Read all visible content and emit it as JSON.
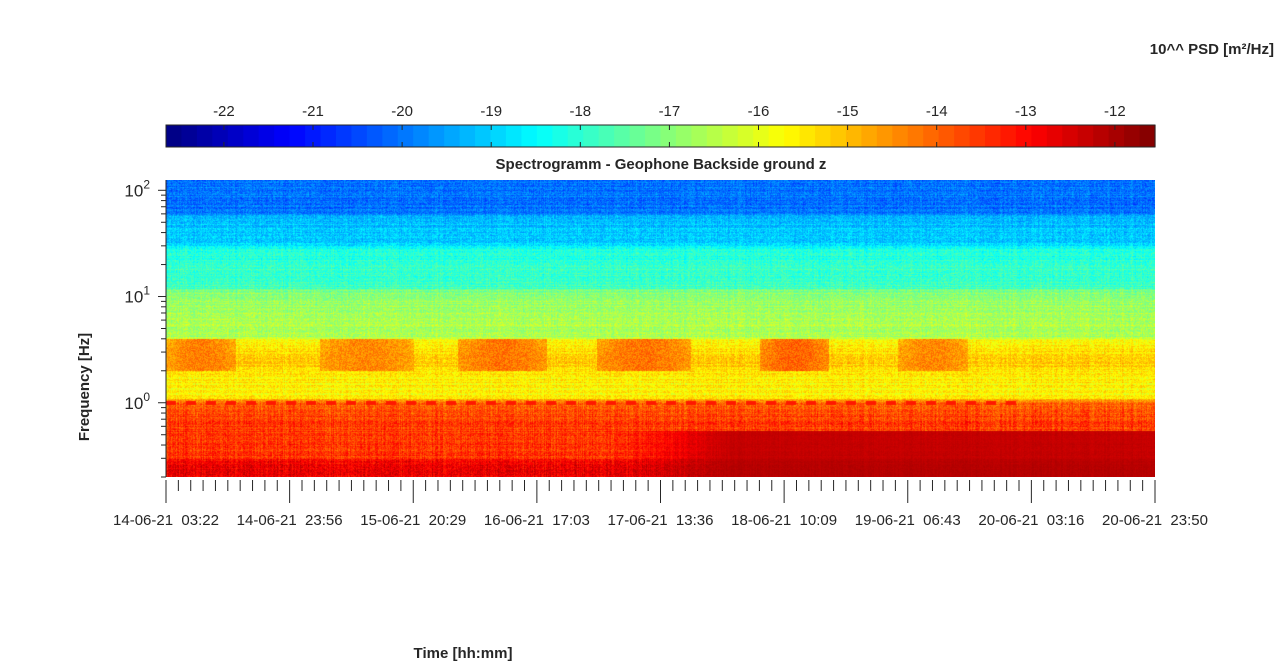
{
  "chart_data": {
    "type": "heatmap",
    "title": "Spectrogramm - Geophone Backside ground z",
    "xlabel": "Time [hh:mm]",
    "ylabel": "Frequency [Hz]",
    "colorbar": {
      "label": "10^^ PSD [m²/Hz]",
      "ticks": [
        "-22",
        "-21",
        "-20",
        "-19",
        "-18",
        "-17",
        "-16",
        "-15",
        "-14",
        "-13",
        "-12"
      ],
      "tick_values": [
        -22,
        -21,
        -20,
        -19,
        -18,
        -17,
        -16,
        -15,
        -14,
        -13,
        -12
      ],
      "range": [
        -22.65,
        -11.55
      ],
      "colormap": "jet",
      "placement": "top"
    },
    "y_scale": "log",
    "ylim": [
      0.2,
      125
    ],
    "y_ticks": [
      {
        "value": 1,
        "base": "10",
        "exp": "0"
      },
      {
        "value": 10,
        "base": "10",
        "exp": "1"
      },
      {
        "value": 100,
        "base": "10",
        "exp": "2"
      }
    ],
    "x_tick_labels": [
      "14-06-21  03:22",
      "14-06-21  23:56",
      "15-06-21  20:29",
      "16-06-21  17:03",
      "17-06-21  13:36",
      "18-06-21  10:09",
      "19-06-21  06:43",
      "20-06-21  03:16",
      "20-06-21  23:50"
    ],
    "x_label_texts": [
      "14-06-21  03:22",
      "14-06-21  23:56",
      "15-06-21  20:29",
      "16-06-21  17:03",
      "17-06-21  13:36",
      "18-06-21  10:09",
      "19-06-21  06:43",
      "20-06-21  03:16",
      "20-06-21  23:50"
    ],
    "x_minor_per_major": 9,
    "bands": [
      {
        "f_low": 0.2,
        "f_high": 0.3,
        "level": -12.7
      },
      {
        "f_low": 0.3,
        "f_high": 0.9,
        "level": -13.5
      },
      {
        "f_low": 0.9,
        "f_high": 1.1,
        "level": -14.0
      },
      {
        "f_low": 1.1,
        "f_high": 2.2,
        "level": -15.6
      },
      {
        "f_low": 2.2,
        "f_high": 4.0,
        "level": -15.2
      },
      {
        "f_low": 4.0,
        "f_high": 12,
        "level": -16.6
      },
      {
        "f_low": 12,
        "f_high": 30,
        "level": -17.8
      },
      {
        "f_low": 30,
        "f_high": 60,
        "level": -19.0
      },
      {
        "f_low": 60,
        "f_high": 125,
        "level": -20.0
      }
    ],
    "activity_bursts": [
      {
        "x_start": 0.0,
        "x_end": 0.07,
        "f_low": 2,
        "f_high": 4,
        "level": -14.3
      },
      {
        "x_start": 0.155,
        "x_end": 0.25,
        "f_low": 2,
        "f_high": 4,
        "level": -14.4
      },
      {
        "x_start": 0.295,
        "x_end": 0.385,
        "f_low": 2,
        "f_high": 4,
        "level": -14.2
      },
      {
        "x_start": 0.435,
        "x_end": 0.53,
        "f_low": 2,
        "f_high": 4,
        "level": -14.2
      },
      {
        "x_start": 0.6,
        "x_end": 0.67,
        "f_low": 2,
        "f_high": 4,
        "level": -14.0
      },
      {
        "x_start": 0.74,
        "x_end": 0.81,
        "f_low": 2,
        "f_high": 4,
        "level": -14.4
      }
    ],
    "low_freq_event": {
      "x_start": 0.45,
      "x_end": 1.0,
      "f_low": 0.2,
      "f_high": 0.55,
      "level": -12.0
    },
    "line_1hz": {
      "x_start": 0.0,
      "x_end": 0.86,
      "frequency": 1.0,
      "level": -13.2
    }
  }
}
